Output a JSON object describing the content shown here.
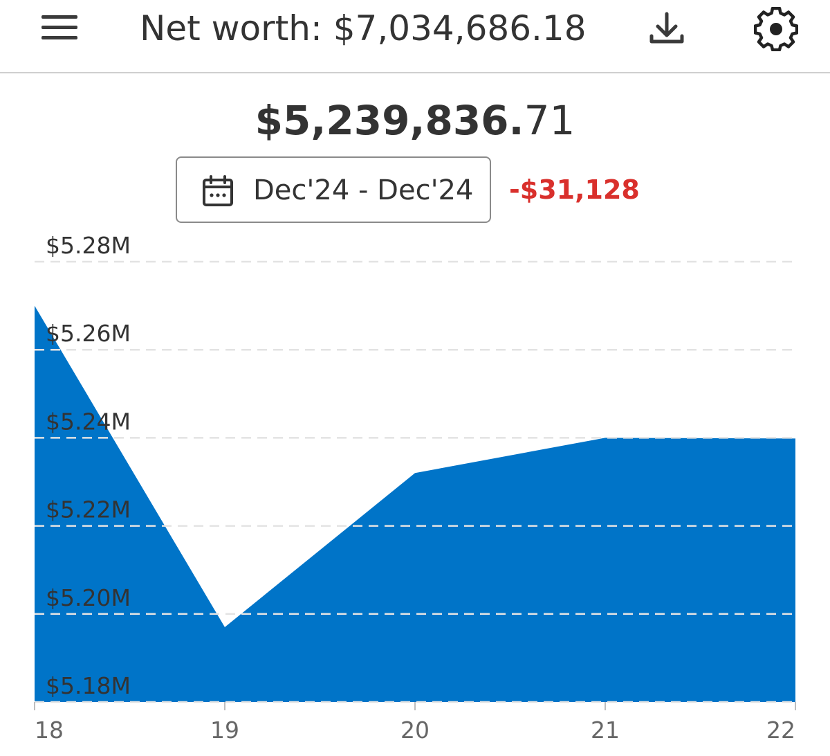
{
  "header": {
    "title": "Net worth: $7,034,686.18",
    "menu_icon": "hamburger-menu-icon",
    "download_icon": "download-icon",
    "settings_icon": "gear-icon"
  },
  "summary": {
    "balance_whole": "$5,239,836.",
    "balance_cents": "71",
    "date_range_label": "Dec'24 - Dec'24",
    "calendar_icon": "calendar-icon",
    "change": "-$31,128",
    "change_color": "#d9302c"
  },
  "chart_data": {
    "type": "area",
    "x": [
      18,
      19,
      20,
      21,
      22
    ],
    "values": [
      5270000,
      5197000,
      5232000,
      5240000,
      5239837
    ],
    "ylim": [
      5180000,
      5280000
    ],
    "yticks": [
      5180000,
      5200000,
      5220000,
      5240000,
      5260000,
      5280000
    ],
    "ytick_labels": [
      "$5.18M",
      "$5.20M",
      "$5.22M",
      "$5.24M",
      "$5.26M",
      "$5.28M"
    ],
    "xtick_labels": [
      "18",
      "19",
      "20",
      "21",
      "22"
    ],
    "fill_color": "#0074c8",
    "grid": true,
    "grid_style": "dashed"
  }
}
